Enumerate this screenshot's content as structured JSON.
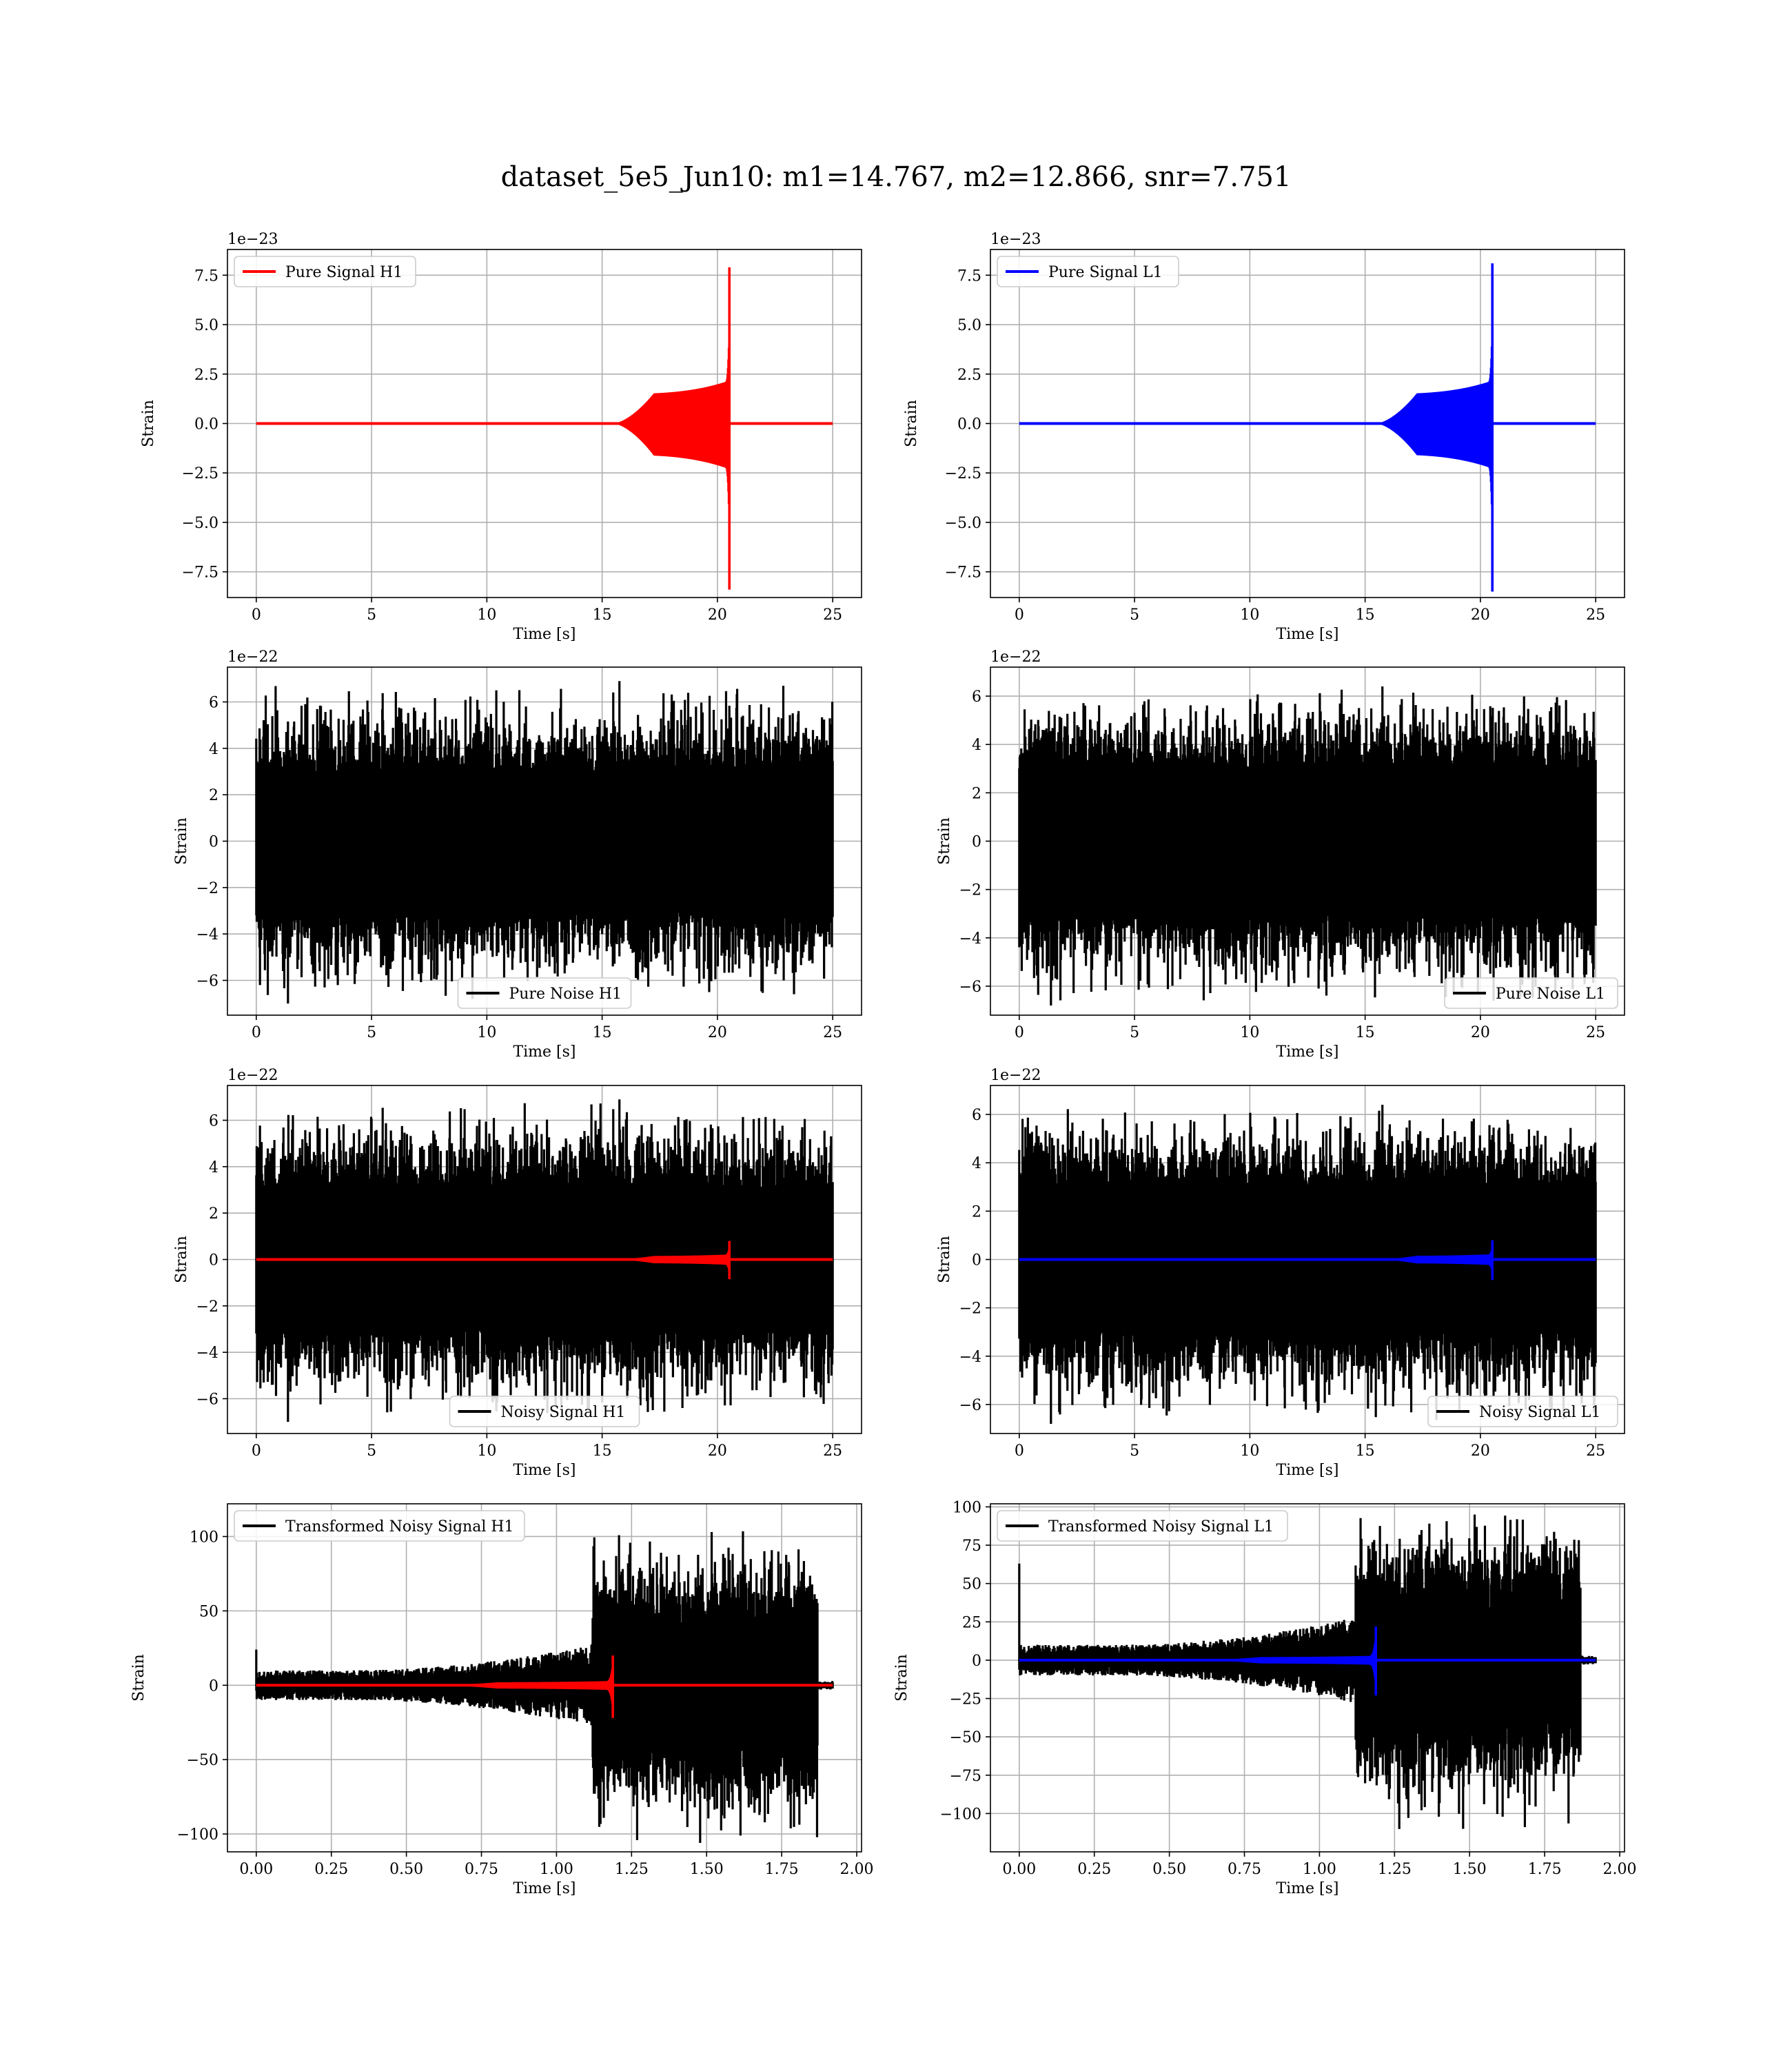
{
  "figure": {
    "title": "dataset_5e5_Jun10: m1=14.767, m2=12.866, snr=7.751"
  },
  "colors": {
    "h1_signal": "#ff0000",
    "l1_signal": "#0000ff",
    "noise": "#000000",
    "grid": "#b0b0b0",
    "legend_border": "#cccccc"
  },
  "chart_data": [
    {
      "type": "line",
      "detector": "H1",
      "xlabel": "Time [s]",
      "ylabel": "Strain",
      "offset_text": "1e−23",
      "xlim": [
        -1.25,
        26.25
      ],
      "ylim": [
        -8.8,
        8.8
      ],
      "xticks": [
        0,
        5,
        10,
        15,
        20,
        25
      ],
      "xtick_labels": [
        "0",
        "5",
        "10",
        "15",
        "20",
        "25"
      ],
      "yticks": [
        -7.5,
        -5.0,
        -2.5,
        0.0,
        2.5,
        5.0,
        7.5
      ],
      "ytick_labels": [
        "−7.5",
        "−5.0",
        "−2.5",
        "0.0",
        "2.5",
        "5.0",
        "7.5"
      ],
      "grid": true,
      "legend_position": "upper-left",
      "series": [
        {
          "name": "Pure Signal H1",
          "color": "#ff0000",
          "kind": "chirp",
          "x_range": [
            0,
            25
          ],
          "onset": 15.5,
          "merger": 20.55,
          "plateau": 1.5,
          "peak_pos": 7.9,
          "peak_neg": -8.4
        }
      ]
    },
    {
      "type": "line",
      "detector": "L1",
      "xlabel": "Time [s]",
      "ylabel": "Strain",
      "offset_text": "1e−23",
      "xlim": [
        -1.25,
        26.25
      ],
      "ylim": [
        -8.8,
        8.8
      ],
      "xticks": [
        0,
        5,
        10,
        15,
        20,
        25
      ],
      "xtick_labels": [
        "0",
        "5",
        "10",
        "15",
        "20",
        "25"
      ],
      "yticks": [
        -7.5,
        -5.0,
        -2.5,
        0.0,
        2.5,
        5.0,
        7.5
      ],
      "ytick_labels": [
        "−7.5",
        "−5.0",
        "−2.5",
        "0.0",
        "2.5",
        "5.0",
        "7.5"
      ],
      "grid": true,
      "legend_position": "upper-left",
      "series": [
        {
          "name": "Pure Signal L1",
          "color": "#0000ff",
          "kind": "chirp",
          "x_range": [
            0,
            25
          ],
          "onset": 15.5,
          "merger": 20.55,
          "plateau": 1.5,
          "peak_pos": 8.1,
          "peak_neg": -8.5
        }
      ]
    },
    {
      "type": "line",
      "detector": "H1",
      "xlabel": "Time [s]",
      "ylabel": "Strain",
      "offset_text": "1e−22",
      "xlim": [
        -1.25,
        26.25
      ],
      "ylim": [
        -7.5,
        7.5
      ],
      "xticks": [
        0,
        5,
        10,
        15,
        20,
        25
      ],
      "xtick_labels": [
        "0",
        "5",
        "10",
        "15",
        "20",
        "25"
      ],
      "yticks": [
        -6,
        -4,
        -2,
        0,
        2,
        4,
        6
      ],
      "ytick_labels": [
        "−6",
        "−4",
        "−2",
        "0",
        "2",
        "4",
        "6"
      ],
      "grid": true,
      "legend_position": "lower-center",
      "series": [
        {
          "name": "Pure Noise H1",
          "color": "#000000",
          "kind": "noise",
          "x_range": [
            0,
            25
          ],
          "core": 3.0,
          "max": 6.9,
          "min": -7.0
        }
      ]
    },
    {
      "type": "line",
      "detector": "L1",
      "xlabel": "Time [s]",
      "ylabel": "Strain",
      "offset_text": "1e−22",
      "xlim": [
        -1.25,
        26.25
      ],
      "ylim": [
        -7.2,
        7.2
      ],
      "xticks": [
        0,
        5,
        10,
        15,
        20,
        25
      ],
      "xtick_labels": [
        "0",
        "5",
        "10",
        "15",
        "20",
        "25"
      ],
      "yticks": [
        -6,
        -4,
        -2,
        0,
        2,
        4,
        6
      ],
      "ytick_labels": [
        "−6",
        "−4",
        "−2",
        "0",
        "2",
        "4",
        "6"
      ],
      "grid": true,
      "legend_position": "lower-right",
      "series": [
        {
          "name": "Pure Noise L1",
          "color": "#000000",
          "kind": "noise",
          "x_range": [
            0,
            25
          ],
          "core": 3.0,
          "max": 6.4,
          "min": -6.8
        }
      ]
    },
    {
      "type": "line",
      "detector": "H1",
      "xlabel": "Time [s]",
      "ylabel": "Strain",
      "offset_text": "1e−22",
      "xlim": [
        -1.25,
        26.25
      ],
      "ylim": [
        -7.5,
        7.5
      ],
      "xticks": [
        0,
        5,
        10,
        15,
        20,
        25
      ],
      "xtick_labels": [
        "0",
        "5",
        "10",
        "15",
        "20",
        "25"
      ],
      "yticks": [
        -6,
        -4,
        -2,
        0,
        2,
        4,
        6
      ],
      "ytick_labels": [
        "−6",
        "−4",
        "−2",
        "0",
        "2",
        "4",
        "6"
      ],
      "grid": true,
      "legend_position": "lower-center",
      "series": [
        {
          "name": "Noisy Signal H1",
          "color": "#000000",
          "kind": "noise",
          "x_range": [
            0,
            25
          ],
          "core": 3.0,
          "max": 6.9,
          "min": -7.0
        },
        {
          "color": "#ff0000",
          "kind": "chirp",
          "x_range": [
            0,
            25
          ],
          "onset": 15.5,
          "merger": 20.55,
          "plateau": 0.15,
          "peak_pos": 0.8,
          "peak_neg": -0.85
        }
      ]
    },
    {
      "type": "line",
      "detector": "L1",
      "xlabel": "Time [s]",
      "ylabel": "Strain",
      "offset_text": "1e−22",
      "xlim": [
        -1.25,
        26.25
      ],
      "ylim": [
        -7.2,
        7.2
      ],
      "xticks": [
        0,
        5,
        10,
        15,
        20,
        25
      ],
      "xtick_labels": [
        "0",
        "5",
        "10",
        "15",
        "20",
        "25"
      ],
      "yticks": [
        -6,
        -4,
        -2,
        0,
        2,
        4,
        6
      ],
      "ytick_labels": [
        "−6",
        "−4",
        "−2",
        "0",
        "2",
        "4",
        "6"
      ],
      "grid": true,
      "legend_position": "lower-right",
      "series": [
        {
          "name": "Noisy Signal L1",
          "color": "#000000",
          "kind": "noise",
          "x_range": [
            0,
            25
          ],
          "core": 3.0,
          "max": 6.4,
          "min": -6.8
        },
        {
          "color": "#0000ff",
          "kind": "chirp",
          "x_range": [
            0,
            25
          ],
          "onset": 15.5,
          "merger": 20.55,
          "plateau": 0.15,
          "peak_pos": 0.8,
          "peak_neg": -0.85
        }
      ]
    },
    {
      "type": "line",
      "detector": "H1",
      "xlabel": "Time [s]",
      "ylabel": "Strain",
      "offset_text": "",
      "xlim": [
        -0.096,
        2.016
      ],
      "ylim": [
        -112,
        122
      ],
      "xticks": [
        0,
        0.25,
        0.5,
        0.75,
        1.0,
        1.25,
        1.5,
        1.75,
        2.0
      ],
      "xtick_labels": [
        "0.00",
        "0.25",
        "0.50",
        "0.75",
        "1.00",
        "1.25",
        "1.50",
        "1.75",
        "2.00"
      ],
      "yticks": [
        -100,
        -50,
        0,
        50,
        100
      ],
      "ytick_labels": [
        "−100",
        "−50",
        "0",
        "50",
        "100"
      ],
      "grid": true,
      "legend_position": "upper-left",
      "series": [
        {
          "name": "Transformed Noisy Signal H1",
          "color": "#000000",
          "kind": "whitened",
          "x_range": [
            0,
            1.92
          ],
          "quiet_end": 1.12,
          "early_amp": 8,
          "late_amp": 45,
          "spike_max": 103,
          "spike_min": -106,
          "start_spike": 24,
          "end_cut": 1.87
        },
        {
          "color": "#ff0000",
          "kind": "chirp",
          "x_range": [
            0,
            1.92
          ],
          "onset": 0.6,
          "merger": 1.19,
          "plateau": 2,
          "peak_pos": 20,
          "peak_neg": -22
        }
      ]
    },
    {
      "type": "line",
      "detector": "L1",
      "xlabel": "Time [s]",
      "ylabel": "Strain",
      "offset_text": "",
      "xlim": [
        -0.096,
        2.016
      ],
      "ylim": [
        -125,
        102
      ],
      "xticks": [
        0,
        0.25,
        0.5,
        0.75,
        1.0,
        1.25,
        1.5,
        1.75,
        2.0
      ],
      "xtick_labels": [
        "0.00",
        "0.25",
        "0.50",
        "0.75",
        "1.00",
        "1.25",
        "1.50",
        "1.75",
        "2.00"
      ],
      "yticks": [
        -100,
        -75,
        -50,
        -25,
        0,
        25,
        50,
        75,
        100
      ],
      "ytick_labels": [
        "−100",
        "−75",
        "−50",
        "−25",
        "0",
        "25",
        "50",
        "75",
        "100"
      ],
      "grid": true,
      "legend_position": "upper-left",
      "series": [
        {
          "name": "Transformed Noisy Signal L1",
          "color": "#000000",
          "kind": "whitened",
          "x_range": [
            0,
            1.92
          ],
          "quiet_end": 1.12,
          "early_amp": 8,
          "late_amp": 45,
          "spike_max": 95,
          "spike_min": -110,
          "start_spike": 63,
          "end_cut": 1.87
        },
        {
          "color": "#0000ff",
          "kind": "chirp",
          "x_range": [
            0,
            1.92
          ],
          "onset": 0.6,
          "merger": 1.19,
          "plateau": 2,
          "peak_pos": 22,
          "peak_neg": -23
        }
      ]
    }
  ]
}
